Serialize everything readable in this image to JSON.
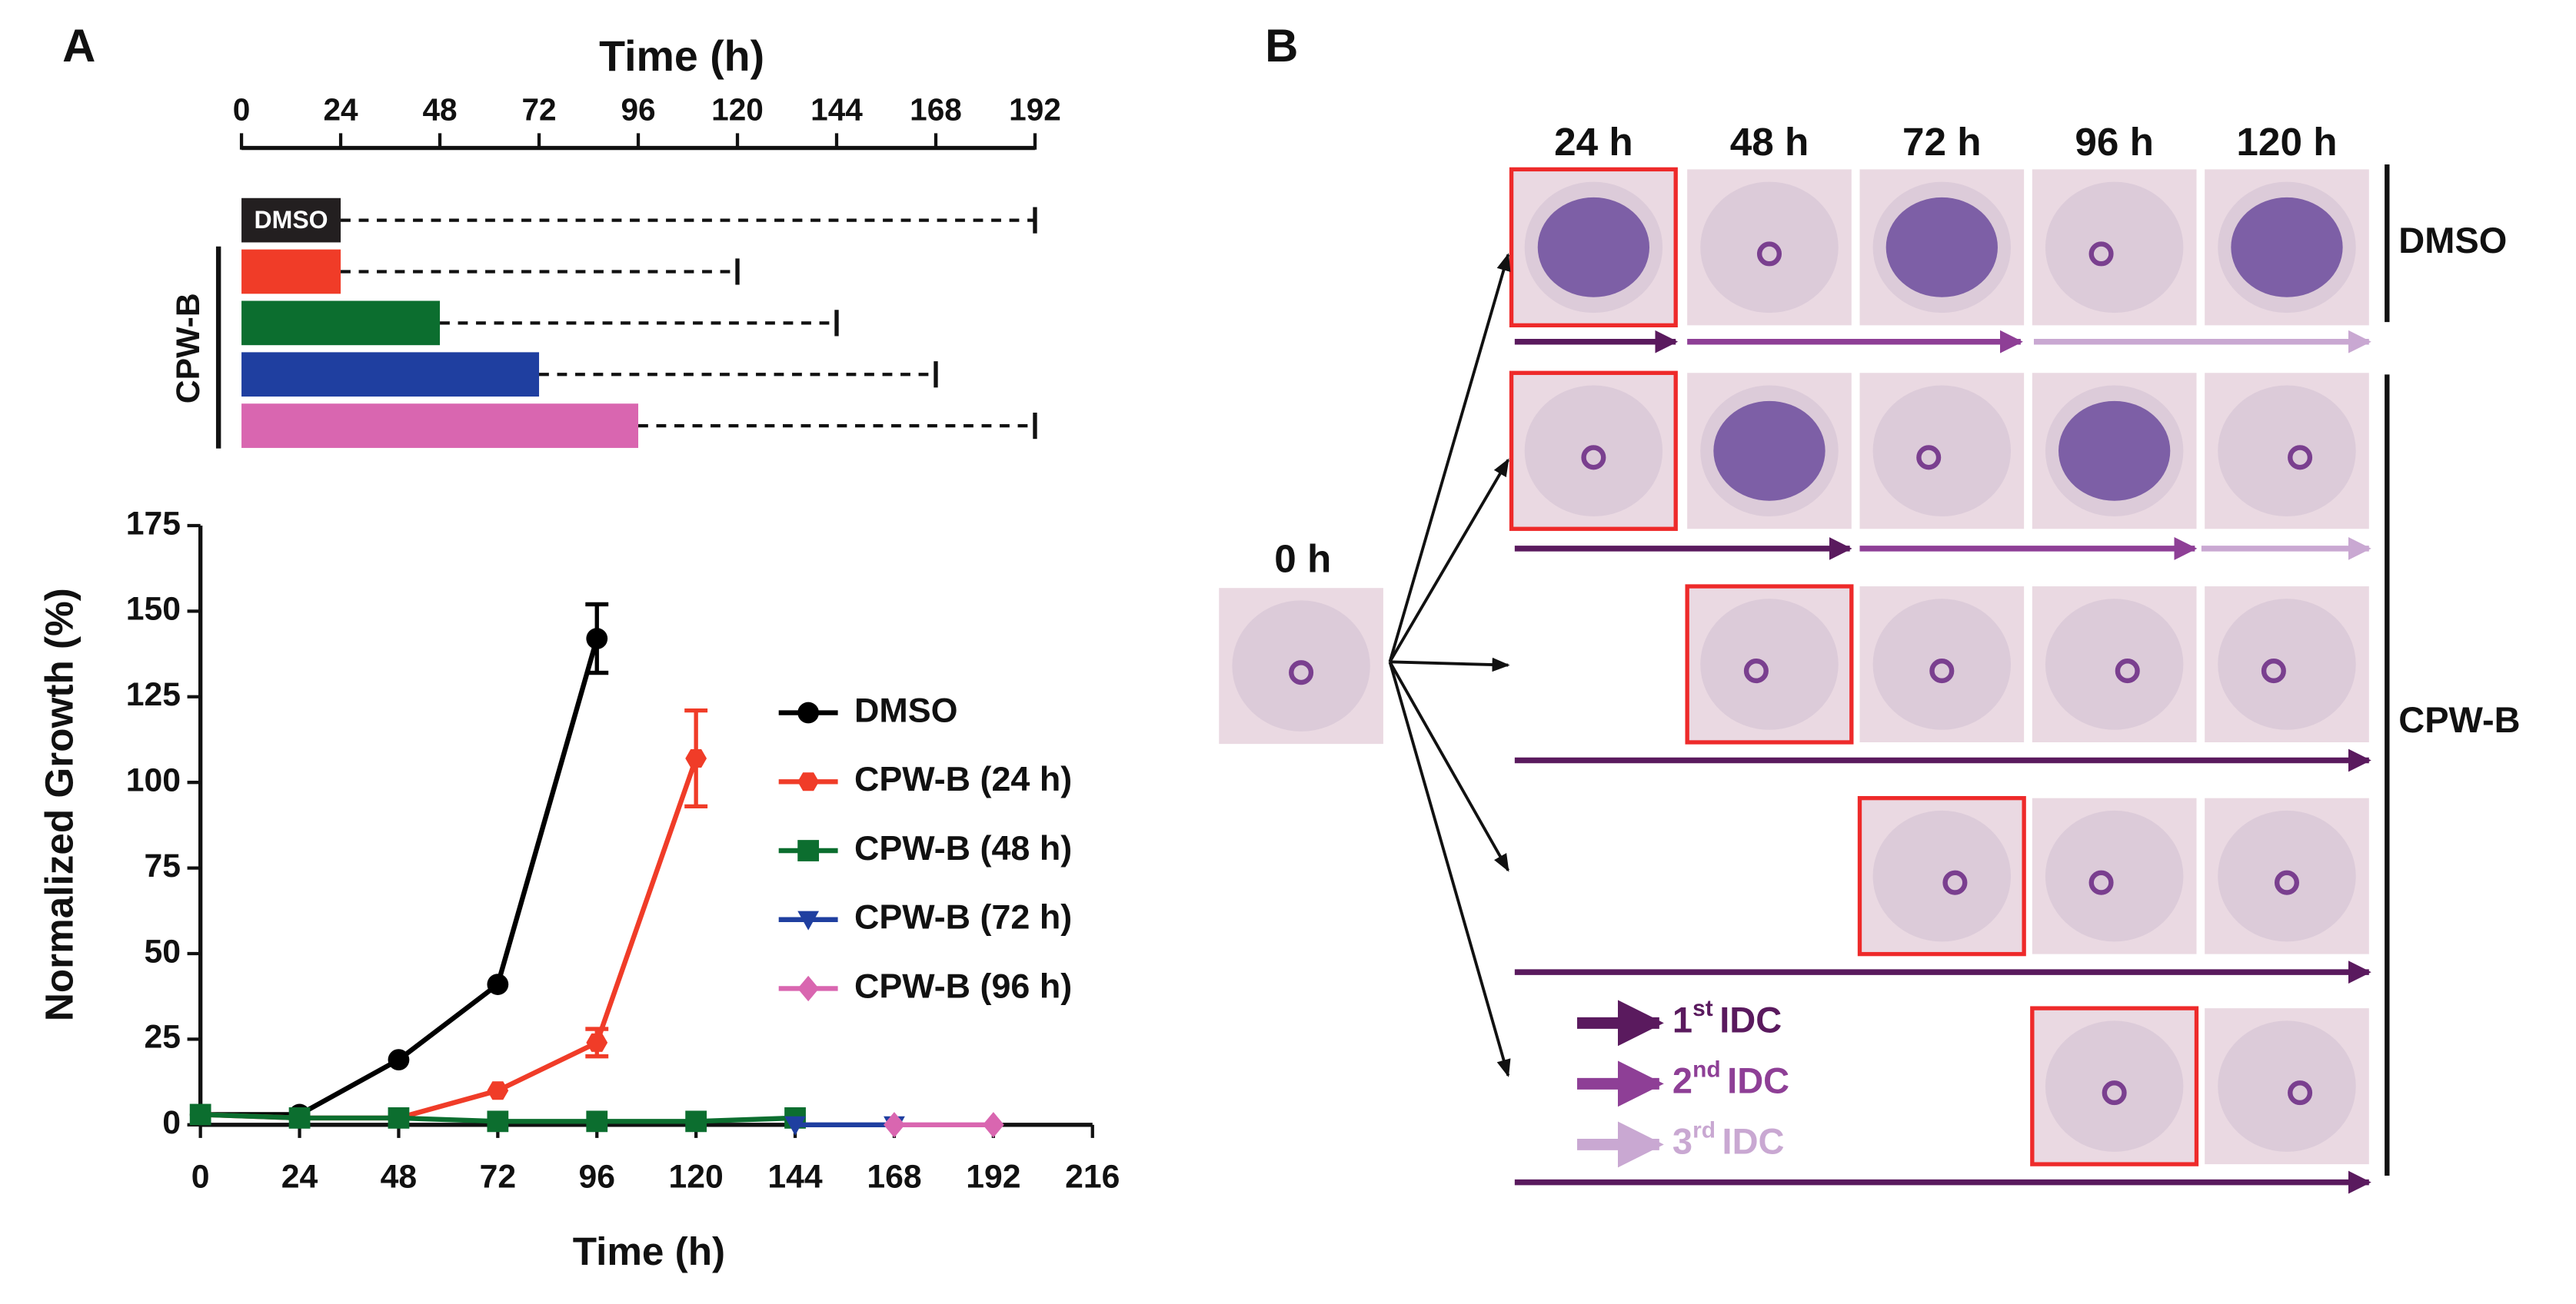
{
  "panel_labels": [
    "A",
    "B"
  ],
  "chart_data": [
    {
      "type": "timeline",
      "title": "Time (h)",
      "xlim": [
        0,
        192
      ],
      "xticks": [
        0,
        24,
        48,
        72,
        96,
        120,
        144,
        168,
        192
      ],
      "categories": [
        "DMSO",
        null,
        null,
        null,
        null
      ],
      "group_label": "CPW-B",
      "values": [
        24,
        24,
        48,
        72,
        96
      ],
      "followup_end": [
        192,
        120,
        144,
        168,
        192
      ],
      "colors": [
        "#231f20",
        "#f03c28",
        "#0c6e2f",
        "#1f3fa0",
        "#d966b0"
      ]
    },
    {
      "type": "line",
      "xlabel": "Time (h)",
      "ylabel": "Normalized Growth (%)",
      "xlim": [
        0,
        216
      ],
      "xticks": [
        0,
        24,
        48,
        72,
        96,
        120,
        144,
        168,
        192,
        216
      ],
      "ylim": [
        0,
        175
      ],
      "yticks": [
        0,
        25,
        50,
        75,
        100,
        125,
        150,
        175
      ],
      "series": [
        {
          "name": "DMSO",
          "color": "#000000",
          "marker": "circle",
          "x": [
            0,
            24,
            48,
            72,
            96
          ],
          "values": [
            3,
            3,
            19,
            41,
            142
          ],
          "errors": [
            null,
            null,
            null,
            null,
            10
          ]
        },
        {
          "name": "CPW-B (24 h)",
          "color": "#f03c28",
          "marker": "hexagon",
          "x": [
            0,
            24,
            48,
            72,
            96,
            120
          ],
          "values": [
            3,
            2,
            2,
            10,
            24,
            107
          ],
          "errors": [
            null,
            null,
            null,
            null,
            4,
            14
          ]
        },
        {
          "name": "CPW-B (48 h)",
          "color": "#0c6e2f",
          "marker": "square",
          "x": [
            0,
            24,
            48,
            72,
            96,
            120,
            144
          ],
          "values": [
            3,
            2,
            2,
            1,
            1,
            1,
            2
          ],
          "errors": [
            null,
            null,
            null,
            null,
            null,
            null,
            null
          ]
        },
        {
          "name": "CPW-B (72 h)",
          "color": "#1f3fa0",
          "marker": "triangle",
          "x": [
            144,
            168
          ],
          "values": [
            0,
            0
          ],
          "errors": [
            null,
            null
          ]
        },
        {
          "name": "CPW-B (96 h)",
          "color": "#d966b0",
          "marker": "diamond",
          "x": [
            168,
            192
          ],
          "values": [
            0,
            0
          ],
          "errors": [
            null,
            null
          ]
        }
      ]
    }
  ],
  "panel_b": {
    "columns": [
      "24 h",
      "48 h",
      "72 h",
      "96 h",
      "120 h"
    ],
    "start": "0 h",
    "groups": [
      "DMSO",
      "CPW-B"
    ],
    "legend": [
      {
        "number": "1",
        "suffix": "st",
        "text": "IDC"
      },
      {
        "number": "2",
        "suffix": "nd",
        "text": "IDC"
      },
      {
        "number": "3",
        "suffix": "rd",
        "text": "IDC"
      }
    ]
  }
}
